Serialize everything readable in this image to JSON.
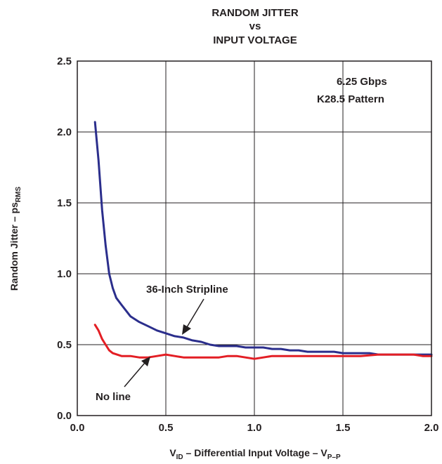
{
  "chart_data": {
    "type": "line",
    "title_lines": [
      "RANDOM JITTER",
      "vs",
      "INPUT VOLTAGE"
    ],
    "xlabel": {
      "main": "V",
      "sub1": "ID",
      "mid": " – Differential Input Voltage – V",
      "sub2": "P–P"
    },
    "ylabel": {
      "main": "Random Jitter – ps",
      "sub": "RMS"
    },
    "xlim": [
      0.0,
      2.0
    ],
    "ylim": [
      0.0,
      2.5
    ],
    "x_ticks": [
      0.0,
      0.5,
      1.0,
      1.5,
      2.0
    ],
    "x_tick_labels": [
      "0.0",
      "0.5",
      "1.0",
      "1.5",
      "2.0"
    ],
    "y_ticks": [
      0.0,
      0.5,
      1.0,
      1.5,
      2.0,
      2.5
    ],
    "y_tick_labels": [
      "0.0",
      "0.5",
      "1.0",
      "1.5",
      "2.0",
      "2.5"
    ],
    "grid": true,
    "annotation_lines": [
      "6.25 Gbps",
      "K28.5 Pattern"
    ],
    "series": [
      {
        "name": "36-Inch Stripline",
        "color": "#2b2e8c",
        "x": [
          0.1,
          0.12,
          0.14,
          0.16,
          0.18,
          0.2,
          0.22,
          0.25,
          0.3,
          0.35,
          0.4,
          0.45,
          0.5,
          0.55,
          0.6,
          0.65,
          0.7,
          0.75,
          0.8,
          0.85,
          0.9,
          0.95,
          1.0,
          1.05,
          1.1,
          1.15,
          1.2,
          1.25,
          1.3,
          1.35,
          1.4,
          1.45,
          1.5,
          1.55,
          1.6,
          1.65,
          1.7,
          1.75,
          1.8,
          1.85,
          1.9,
          1.95,
          2.0
        ],
        "y": [
          2.07,
          1.8,
          1.45,
          1.2,
          1.0,
          0.9,
          0.83,
          0.78,
          0.7,
          0.66,
          0.63,
          0.6,
          0.58,
          0.56,
          0.55,
          0.53,
          0.52,
          0.5,
          0.49,
          0.49,
          0.49,
          0.48,
          0.48,
          0.48,
          0.47,
          0.47,
          0.46,
          0.46,
          0.45,
          0.45,
          0.45,
          0.45,
          0.44,
          0.44,
          0.44,
          0.44,
          0.43,
          0.43,
          0.43,
          0.43,
          0.43,
          0.43,
          0.43
        ]
      },
      {
        "name": "No line",
        "color": "#e31e24",
        "x": [
          0.1,
          0.12,
          0.14,
          0.16,
          0.18,
          0.2,
          0.25,
          0.3,
          0.35,
          0.4,
          0.45,
          0.5,
          0.55,
          0.6,
          0.7,
          0.8,
          0.85,
          0.9,
          0.95,
          1.0,
          1.05,
          1.1,
          1.2,
          1.3,
          1.4,
          1.5,
          1.6,
          1.7,
          1.8,
          1.9,
          1.95,
          2.0
        ],
        "y": [
          0.64,
          0.6,
          0.54,
          0.5,
          0.46,
          0.44,
          0.42,
          0.42,
          0.41,
          0.41,
          0.42,
          0.43,
          0.42,
          0.41,
          0.41,
          0.41,
          0.42,
          0.42,
          0.41,
          0.4,
          0.41,
          0.42,
          0.42,
          0.42,
          0.42,
          0.42,
          0.42,
          0.43,
          0.43,
          0.43,
          0.42,
          0.42
        ]
      }
    ]
  }
}
